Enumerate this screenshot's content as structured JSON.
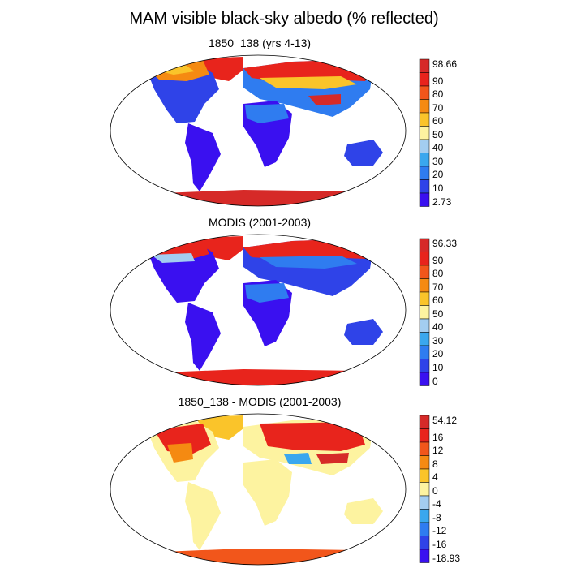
{
  "figure": {
    "title": "MAM visible black-sky albedo (% reflected)"
  },
  "panels": [
    {
      "title": "1850_138 (yrs 4-13)",
      "colorbar": {
        "labels": [
          "98.66",
          "90",
          "80",
          "70",
          "60",
          "50",
          "40",
          "30",
          "20",
          "10",
          "2.73"
        ],
        "colors": [
          "#d62a28",
          "#e8241c",
          "#f2561b",
          "#f58a12",
          "#fac42a",
          "#fdf3a0",
          "#a3cdf0",
          "#3aa7ee",
          "#2f7cf0",
          "#2f43e8",
          "#3a10f0"
        ]
      }
    },
    {
      "title": "MODIS (2001-2003)",
      "colorbar": {
        "labels": [
          "96.33",
          "90",
          "80",
          "70",
          "60",
          "50",
          "40",
          "30",
          "20",
          "10",
          "0"
        ],
        "colors": [
          "#d62a28",
          "#e8241c",
          "#f2561b",
          "#f58a12",
          "#fac42a",
          "#fdf3a0",
          "#a3cdf0",
          "#3aa7ee",
          "#2f7cf0",
          "#2f43e8",
          "#3a10f0"
        ]
      }
    },
    {
      "title": "1850_138 - MODIS (2001-2003)",
      "colorbar": {
        "labels": [
          "54.12",
          "16",
          "12",
          "8",
          "4",
          "0",
          "-4",
          "-8",
          "-12",
          "-16",
          "-18.93"
        ],
        "colors": [
          "#d62a28",
          "#e8241c",
          "#f2561b",
          "#f58a12",
          "#fac42a",
          "#fdf3a0",
          "#a3cdf0",
          "#3aa7ee",
          "#2f7cf0",
          "#2f43e8",
          "#3a10f0"
        ]
      }
    }
  ]
}
